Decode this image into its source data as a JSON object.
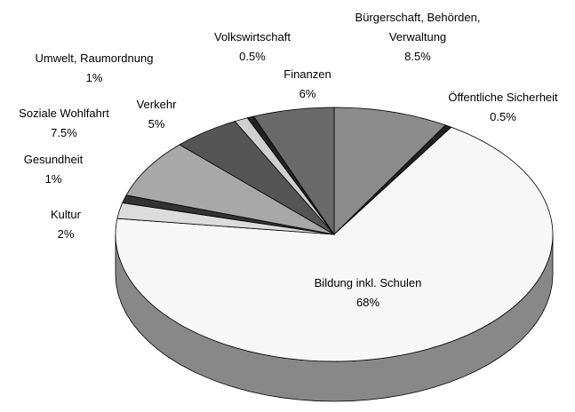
{
  "chart_data": {
    "type": "pie3d",
    "categories": [
      "Bürgerschaft, Behörden,\nVerwaltung",
      "Öffentliche Sicherheit",
      "Bildung inkl. Schulen",
      "Kultur",
      "Gesundheit",
      "Soziale Wohlfahrt",
      "Verkehr",
      "Umwelt, Raumordnung",
      "Volkswirtschaft",
      "Finanzen"
    ],
    "values": [
      8.5,
      0.5,
      68,
      2,
      1,
      7.5,
      5,
      1,
      0.5,
      6
    ],
    "value_labels": [
      "8.5%",
      "0.5%",
      "68%",
      "2%",
      "1%",
      "7.5%",
      "5%",
      "1%",
      "0.5%",
      "6%"
    ],
    "colors": [
      "#8c8c8c",
      "#222222",
      "#f7f7f7",
      "#dcdcdc",
      "#333333",
      "#a8a8a8",
      "#555555",
      "#cfcfcf",
      "#222222",
      "#6a6a6a"
    ]
  }
}
